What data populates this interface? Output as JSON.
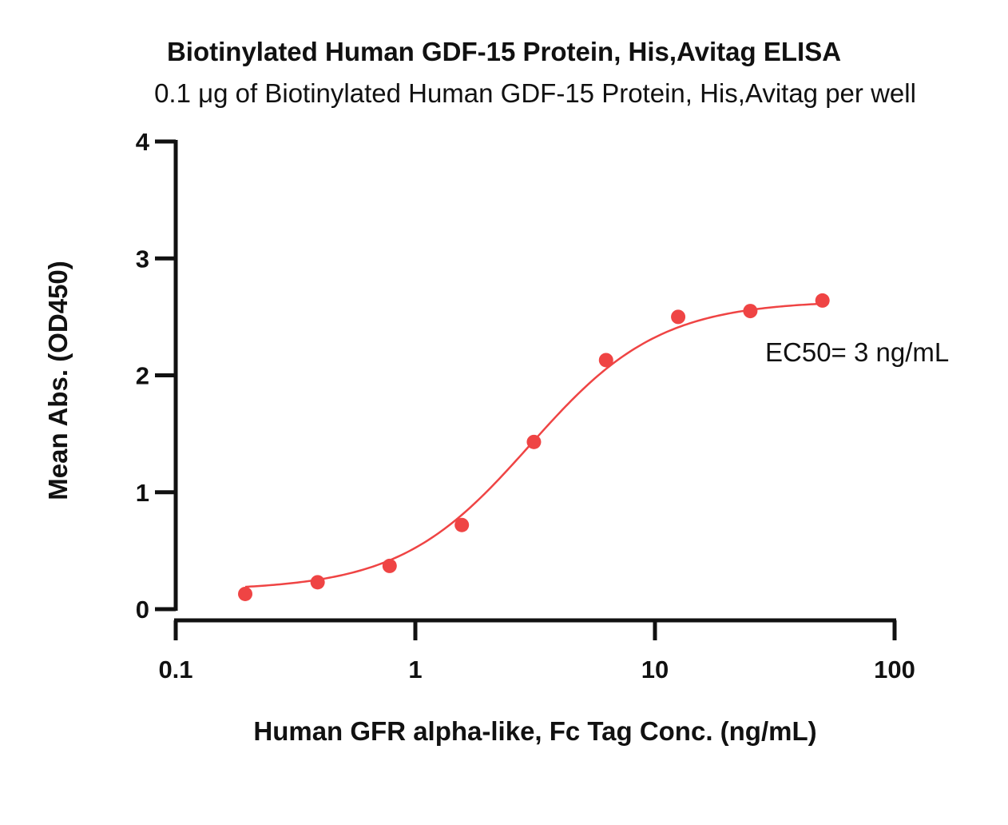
{
  "chart_data": {
    "type": "scatter",
    "title": "Biotinylated Human GDF-15 Protein, His,Avitag ELISA",
    "subtitle": "0.1 μg of Biotinylated Human GDF-15 Protein, His,Avitag per well",
    "xlabel": "Human GFR alpha-like, Fc Tag Conc. (ng/mL)",
    "ylabel": "Mean Abs. (OD450)",
    "x_scale": "log",
    "xlim": [
      0.1,
      100
    ],
    "ylim": [
      0,
      4
    ],
    "x_ticks": [
      0.1,
      1,
      10,
      100
    ],
    "x_tick_labels": [
      "0.1",
      "1",
      "10",
      "100"
    ],
    "y_ticks": [
      0,
      1,
      2,
      3,
      4
    ],
    "y_tick_labels": [
      "0",
      "1",
      "2",
      "3",
      "4"
    ],
    "grid": false,
    "color": "#ef4444",
    "series": [
      {
        "x": [
          0.195,
          0.391,
          0.781,
          1.563,
          3.125,
          6.25,
          12.5,
          25,
          50
        ],
        "y": [
          0.13,
          0.23,
          0.37,
          0.72,
          1.43,
          2.13,
          2.5,
          2.55,
          2.64
        ]
      }
    ],
    "fit": {
      "bottom": 0.16,
      "top": 2.64,
      "ec50": 3.0,
      "hill": 1.6
    },
    "annotation": "EC50= 3 ng/mL"
  }
}
